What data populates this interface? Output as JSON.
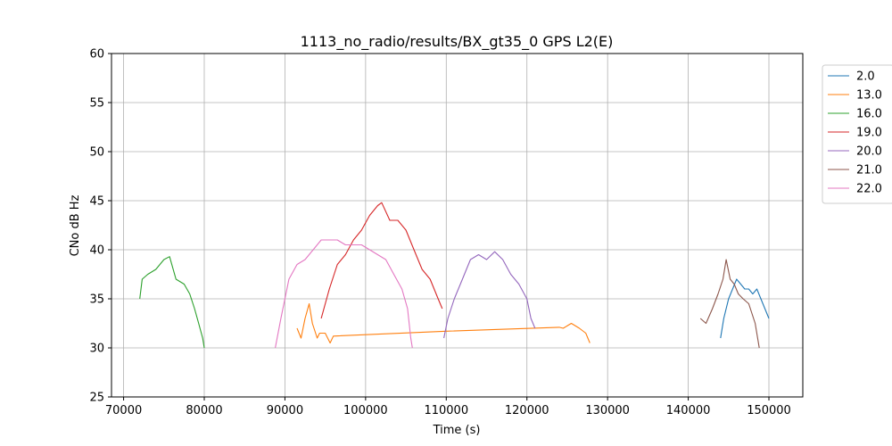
{
  "chart_data": {
    "type": "line",
    "title": "1113_no_radio/results/BX_gt35_0 GPS L2(E)",
    "xlabel": "Time (s)",
    "ylabel": "CNo dB Hz",
    "xlim": [
      68500,
      154200
    ],
    "ylim": [
      25,
      60
    ],
    "xticks": [
      70000,
      80000,
      90000,
      100000,
      110000,
      120000,
      130000,
      140000,
      150000
    ],
    "yticks": [
      25,
      30,
      35,
      40,
      45,
      50,
      55,
      60
    ],
    "grid": true,
    "legend_position": "outside-right",
    "series": [
      {
        "name": "2.0",
        "color": "#1f77b4",
        "points": [
          [
            144000,
            31
          ],
          [
            144400,
            33
          ],
          [
            145000,
            35
          ],
          [
            145500,
            36
          ],
          [
            146000,
            37
          ],
          [
            146500,
            36.5
          ],
          [
            147000,
            36
          ],
          [
            147500,
            36
          ],
          [
            148000,
            35.5
          ],
          [
            148500,
            36
          ],
          [
            149000,
            35
          ],
          [
            149500,
            34
          ],
          [
            150000,
            33
          ]
        ]
      },
      {
        "name": "13.0",
        "color": "#ff7f0e",
        "points": [
          [
            91500,
            32
          ],
          [
            92000,
            31
          ],
          [
            92500,
            33
          ],
          [
            93000,
            34.5
          ],
          [
            93400,
            32.5
          ],
          [
            94000,
            31
          ],
          [
            94300,
            31.5
          ],
          [
            95000,
            31.5
          ],
          [
            95600,
            30.5
          ],
          [
            96000,
            31.2
          ],
          [
            110000,
            31.7
          ],
          [
            124000,
            32.1
          ],
          [
            124500,
            32
          ],
          [
            125500,
            32.5
          ],
          [
            126500,
            32
          ],
          [
            127300,
            31.5
          ],
          [
            127800,
            30.5
          ]
        ]
      },
      {
        "name": "16.0",
        "color": "#2ca02c",
        "points": [
          [
            72000,
            35
          ],
          [
            72300,
            37
          ],
          [
            73000,
            37.5
          ],
          [
            74000,
            38
          ],
          [
            75000,
            39
          ],
          [
            75700,
            39.3
          ],
          [
            76500,
            37
          ],
          [
            77500,
            36.5
          ],
          [
            78200,
            35.5
          ],
          [
            78800,
            34
          ],
          [
            79300,
            32.5
          ],
          [
            79800,
            31
          ],
          [
            80000,
            30
          ]
        ]
      },
      {
        "name": "19.0",
        "color": "#d62728",
        "points": [
          [
            94500,
            33
          ],
          [
            95500,
            36
          ],
          [
            96500,
            38.5
          ],
          [
            97500,
            39.5
          ],
          [
            98500,
            41
          ],
          [
            99500,
            42
          ],
          [
            100500,
            43.5
          ],
          [
            101500,
            44.5
          ],
          [
            102000,
            44.8
          ],
          [
            103000,
            43
          ],
          [
            104000,
            43
          ],
          [
            105000,
            42
          ],
          [
            106000,
            40
          ],
          [
            107000,
            38
          ],
          [
            108000,
            37
          ],
          [
            109000,
            35
          ],
          [
            109500,
            34
          ]
        ]
      },
      {
        "name": "20.0",
        "color": "#9467bd",
        "points": [
          [
            109700,
            31
          ],
          [
            110200,
            33
          ],
          [
            111000,
            35
          ],
          [
            112000,
            37
          ],
          [
            113000,
            39
          ],
          [
            114000,
            39.5
          ],
          [
            115000,
            39
          ],
          [
            116000,
            39.8
          ],
          [
            117000,
            39
          ],
          [
            118000,
            37.5
          ],
          [
            119000,
            36.5
          ],
          [
            120000,
            35
          ],
          [
            120500,
            33
          ],
          [
            121000,
            32
          ]
        ]
      },
      {
        "name": "21.0",
        "color": "#8c564b",
        "points": [
          [
            141500,
            33
          ],
          [
            142200,
            32.5
          ],
          [
            143000,
            34
          ],
          [
            143700,
            35.5
          ],
          [
            144300,
            37
          ],
          [
            144700,
            39
          ],
          [
            145200,
            37
          ],
          [
            145700,
            36.5
          ],
          [
            146200,
            35.5
          ],
          [
            146800,
            35
          ],
          [
            147500,
            34.5
          ],
          [
            148300,
            32.5
          ],
          [
            148800,
            30
          ]
        ]
      },
      {
        "name": "22.0",
        "color": "#e377c2",
        "points": [
          [
            88800,
            30
          ],
          [
            89500,
            33
          ],
          [
            90500,
            37
          ],
          [
            91500,
            38.5
          ],
          [
            92500,
            39
          ],
          [
            93500,
            40
          ],
          [
            94500,
            41
          ],
          [
            95500,
            41
          ],
          [
            96500,
            41
          ],
          [
            97500,
            40.5
          ],
          [
            98500,
            40.5
          ],
          [
            99500,
            40.5
          ],
          [
            100500,
            40
          ],
          [
            101500,
            39.5
          ],
          [
            102500,
            39
          ],
          [
            103500,
            37.5
          ],
          [
            104500,
            36
          ],
          [
            105200,
            34
          ],
          [
            105600,
            31
          ],
          [
            105800,
            30
          ]
        ]
      }
    ]
  }
}
